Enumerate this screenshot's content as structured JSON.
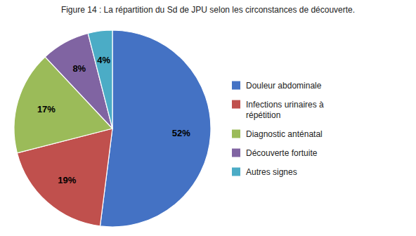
{
  "chart_data": {
    "type": "pie",
    "title": "Figure 14 : La répartition du Sd de JPU selon les circonstances de découverte.",
    "categories": [
      "Douleur abdominale",
      "Infections urinaires à\n répétition",
      "Diagnostic anténatal",
      "Découverte fortuite",
      "Autres signes"
    ],
    "values": [
      52,
      19,
      17,
      8,
      4
    ],
    "value_labels": [
      "52%",
      "19%",
      "17%",
      "8%",
      "4%"
    ],
    "colors": [
      "#4472C4",
      "#C0504D",
      "#9BBB59",
      "#8064A2",
      "#4BACC6"
    ],
    "data_labels": true,
    "legend": "right"
  }
}
